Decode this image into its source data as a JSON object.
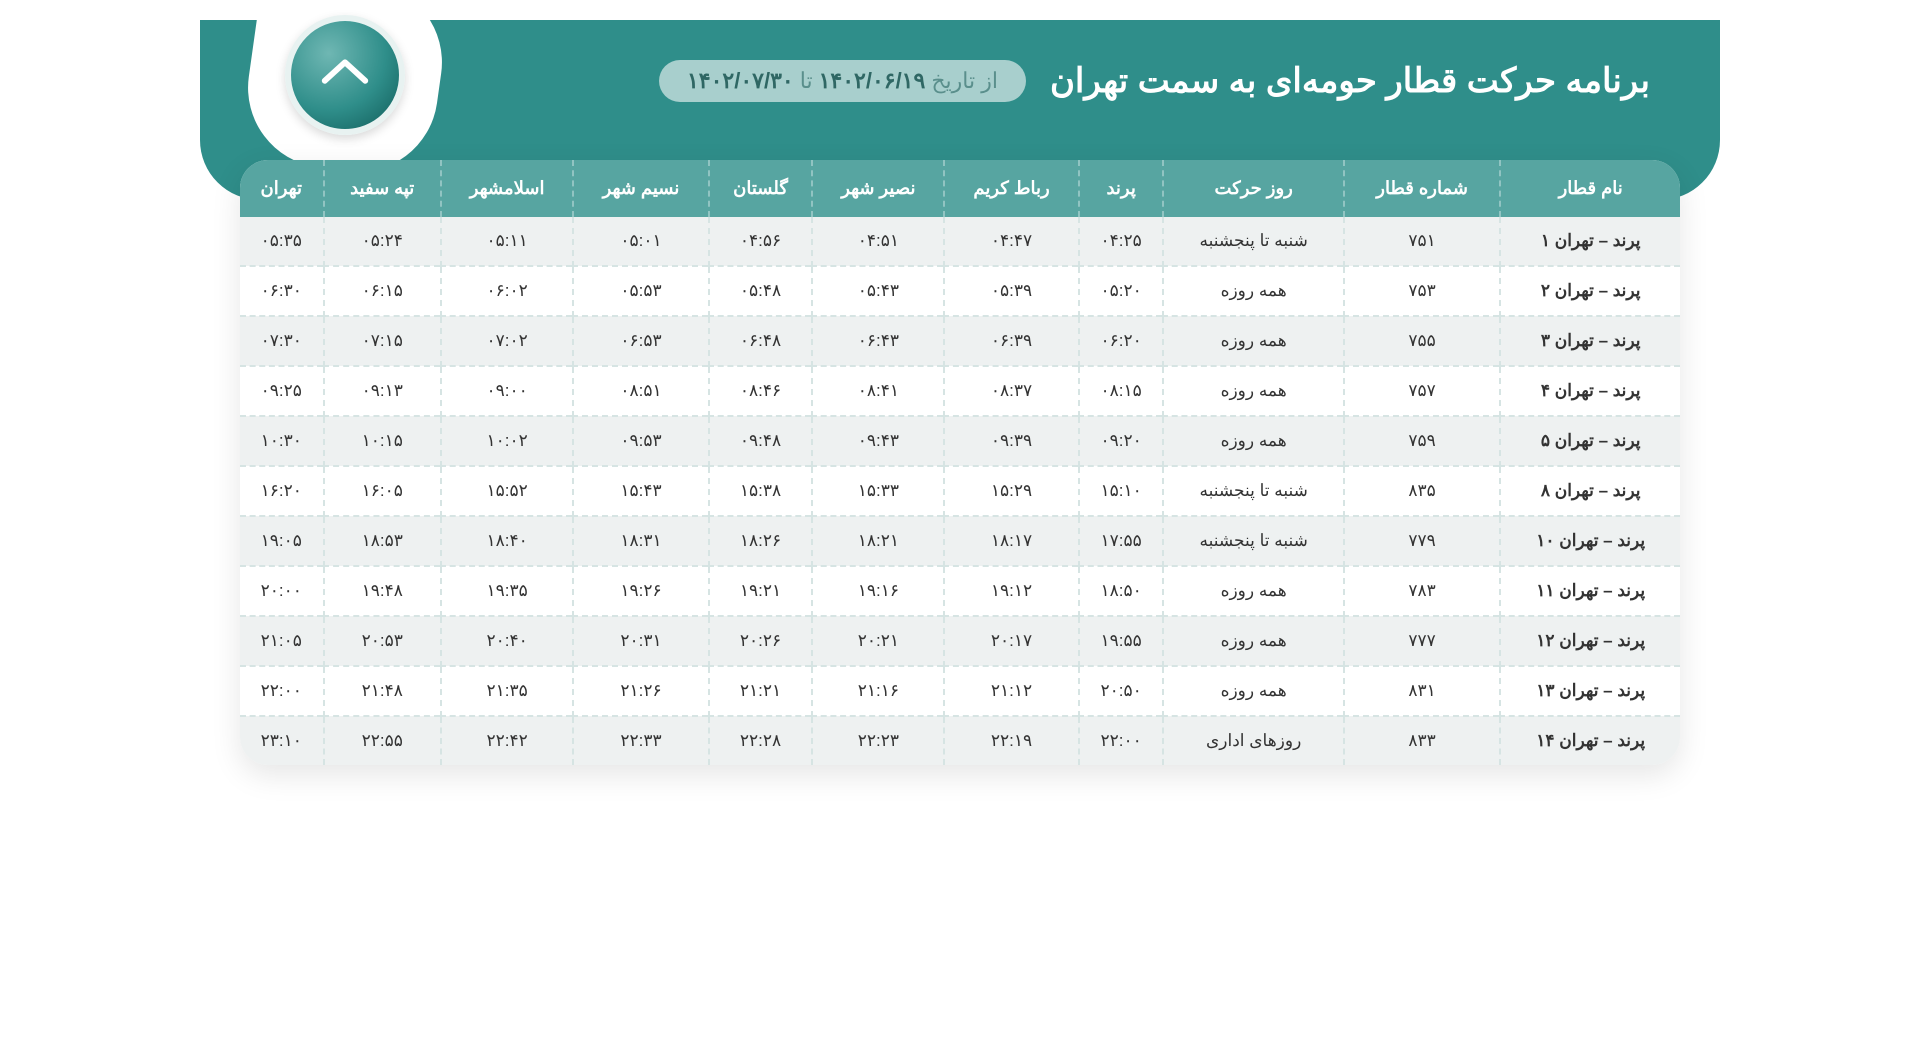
{
  "colors": {
    "hero_bg": "#2f8e8a",
    "thead_bg": "#57a5a1",
    "row_odd": "#eef1f1",
    "row_even": "#ffffff",
    "dash_border": "#d6e4e3",
    "pill_bg": "#a8cfcd",
    "text": "#333333",
    "white": "#ffffff"
  },
  "header": {
    "title": "برنامه حرکت قطار حومه‌ای به سمت تهران",
    "date_label": "از تاریخ",
    "date_from": "۱۴۰۲/۰۶/۱۹",
    "date_sep": "تا",
    "date_to": "۱۴۰۲/۰۷/۳۰"
  },
  "table": {
    "columns": [
      "نام قطار",
      "شماره قطار",
      "روز حرکت",
      "پرند",
      "رباط کریم",
      "نصیر شهر",
      "گلستان",
      "نسیم شهر",
      "اسلامشهر",
      "تپه سفید",
      "تهران"
    ],
    "rows": [
      [
        "پرند – تهران ۱",
        "۷۵۱",
        "شنبه تا پنجشنبه",
        "۰۴:۲۵",
        "۰۴:۴۷",
        "۰۴:۵۱",
        "۰۴:۵۶",
        "۰۵:۰۱",
        "۰۵:۱۱",
        "۰۵:۲۴",
        "۰۵:۳۵"
      ],
      [
        "پرند – تهران ۲",
        "۷۵۳",
        "همه روزه",
        "۰۵:۲۰",
        "۰۵:۳۹",
        "۰۵:۴۳",
        "۰۵:۴۸",
        "۰۵:۵۳",
        "۰۶:۰۲",
        "۰۶:۱۵",
        "۰۶:۳۰"
      ],
      [
        "پرند – تهران ۳",
        "۷۵۵",
        "همه روزه",
        "۰۶:۲۰",
        "۰۶:۳۹",
        "۰۶:۴۳",
        "۰۶:۴۸",
        "۰۶:۵۳",
        "۰۷:۰۲",
        "۰۷:۱۵",
        "۰۷:۳۰"
      ],
      [
        "پرند – تهران ۴",
        "۷۵۷",
        "همه روزه",
        "۰۸:۱۵",
        "۰۸:۳۷",
        "۰۸:۴۱",
        "۰۸:۴۶",
        "۰۸:۵۱",
        "۰۹:۰۰",
        "۰۹:۱۳",
        "۰۹:۲۵"
      ],
      [
        "پرند – تهران ۵",
        "۷۵۹",
        "همه روزه",
        "۰۹:۲۰",
        "۰۹:۳۹",
        "۰۹:۴۳",
        "۰۹:۴۸",
        "۰۹:۵۳",
        "۱۰:۰۲",
        "۱۰:۱۵",
        "۱۰:۳۰"
      ],
      [
        "پرند – تهران ۸",
        "۸۳۵",
        "شنبه تا پنجشنبه",
        "۱۵:۱۰",
        "۱۵:۲۹",
        "۱۵:۳۳",
        "۱۵:۳۸",
        "۱۵:۴۳",
        "۱۵:۵۲",
        "۱۶:۰۵",
        "۱۶:۲۰"
      ],
      [
        "پرند – تهران ۱۰",
        "۷۷۹",
        "شنبه تا پنجشنبه",
        "۱۷:۵۵",
        "۱۸:۱۷",
        "۱۸:۲۱",
        "۱۸:۲۶",
        "۱۸:۳۱",
        "۱۸:۴۰",
        "۱۸:۵۳",
        "۱۹:۰۵"
      ],
      [
        "پرند – تهران ۱۱",
        "۷۸۳",
        "همه روزه",
        "۱۸:۵۰",
        "۱۹:۱۲",
        "۱۹:۱۶",
        "۱۹:۲۱",
        "۱۹:۲۶",
        "۱۹:۳۵",
        "۱۹:۴۸",
        "۲۰:۰۰"
      ],
      [
        "پرند – تهران ۱۲",
        "۷۷۷",
        "همه روزه",
        "۱۹:۵۵",
        "۲۰:۱۷",
        "۲۰:۲۱",
        "۲۰:۲۶",
        "۲۰:۳۱",
        "۲۰:۴۰",
        "۲۰:۵۳",
        "۲۱:۰۵"
      ],
      [
        "پرند – تهران ۱۳",
        "۸۳۱",
        "همه روزه",
        "۲۰:۵۰",
        "۲۱:۱۲",
        "۲۱:۱۶",
        "۲۱:۲۱",
        "۲۱:۲۶",
        "۲۱:۳۵",
        "۲۱:۴۸",
        "۲۲:۰۰"
      ],
      [
        "پرند – تهران ۱۴",
        "۸۳۳",
        "روزهای اداری",
        "۲۲:۰۰",
        "۲۲:۱۹",
        "۲۲:۲۳",
        "۲۲:۲۸",
        "۲۲:۳۳",
        "۲۲:۴۲",
        "۲۲:۵۵",
        "۲۳:۱۰"
      ]
    ]
  }
}
